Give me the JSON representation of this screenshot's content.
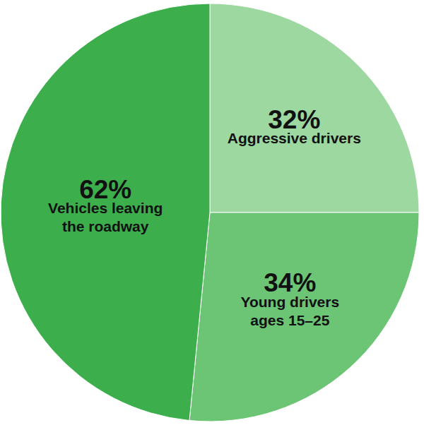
{
  "chart_data": {
    "type": "pie",
    "categories": [
      "Aggressive drivers",
      "Young drivers\nages 15–25",
      "Vehicles leaving\nthe roadway"
    ],
    "values": [
      32,
      34,
      62
    ],
    "value_labels": [
      "32%",
      "34%",
      "62%"
    ],
    "colors": [
      "#9dd8a0",
      "#6cc475",
      "#3caf4c"
    ],
    "data_labels": true
  }
}
